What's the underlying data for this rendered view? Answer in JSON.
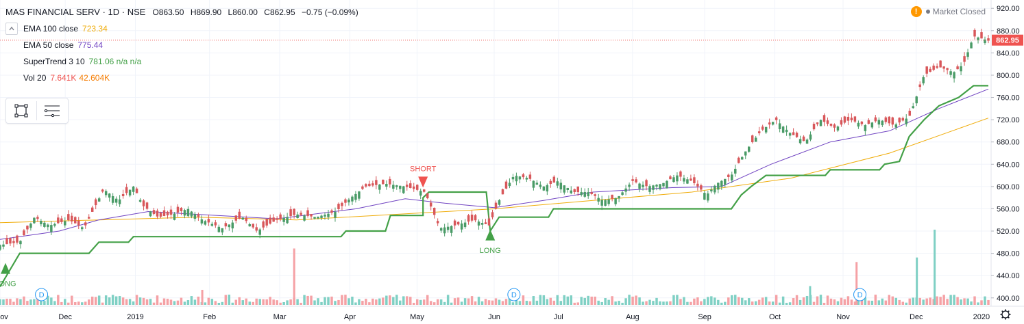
{
  "header": {
    "symbol": "MAS FINANCIAL SERV · 1D · NSE",
    "open": "O863.50",
    "high": "H869.90",
    "low": "L860.00",
    "close": "C862.95",
    "change": "−0.75 (−0.09%)",
    "collapse_icon": "chevron-up-icon"
  },
  "indicators": [
    {
      "name": "EMA 100 close",
      "value": "723.34",
      "color": "#f0ad0c"
    },
    {
      "name": "EMA 50 close",
      "value": "775.44",
      "color": "#6f42c1"
    },
    {
      "name": "SuperTrend 3 10",
      "value": "781.06 n/a n/a",
      "color": "#43a047"
    },
    {
      "name": "Vol 20",
      "value": "7.641K",
      "value2": "42.604K",
      "color": "#ef5350",
      "color2": "#f57c00"
    }
  ],
  "toolbox": {
    "tool1": "square-icon",
    "tool2": "list-icon"
  },
  "market": {
    "warning": "!",
    "status": "Market Closed"
  },
  "price_label": "862.95",
  "chart_data": {
    "type": "candlestick",
    "colors": {
      "up": "#4a9b67",
      "down": "#d8575a",
      "up_vol": "#7fd0c4",
      "down_vol": "#f5a1a5",
      "ema100": "#f0ad0c",
      "ema50": "#6f42c1",
      "supertrend": "#43a047"
    },
    "ylim": [
      385,
      935
    ],
    "y_ticks": [
      400,
      440,
      480,
      520,
      560,
      600,
      640,
      680,
      720,
      760,
      800,
      840,
      880,
      920
    ],
    "x_ticks": [
      {
        "label": "ov",
        "t": 0.0
      },
      {
        "label": "Dec",
        "t": 0.066
      },
      {
        "label": "2019",
        "t": 0.137
      },
      {
        "label": "Feb",
        "t": 0.212
      },
      {
        "label": "Mar",
        "t": 0.283
      },
      {
        "label": "Apr",
        "t": 0.354
      },
      {
        "label": "May",
        "t": 0.422
      },
      {
        "label": "Jun",
        "t": 0.5
      },
      {
        "label": "Jul",
        "t": 0.565
      },
      {
        "label": "Aug",
        "t": 0.64
      },
      {
        "label": "Sep",
        "t": 0.713
      },
      {
        "label": "Oct",
        "t": 0.784
      },
      {
        "label": "Nov",
        "t": 0.853
      },
      {
        "label": "Dec",
        "t": 0.927
      },
      {
        "label": "2020",
        "t": 0.993
      }
    ],
    "price_path": [
      [
        0.0,
        495
      ],
      [
        0.02,
        500
      ],
      [
        0.035,
        545
      ],
      [
        0.05,
        530
      ],
      [
        0.07,
        540
      ],
      [
        0.085,
        525
      ],
      [
        0.095,
        560
      ],
      [
        0.105,
        595
      ],
      [
        0.12,
        575
      ],
      [
        0.135,
        600
      ],
      [
        0.145,
        565
      ],
      [
        0.16,
        545
      ],
      [
        0.175,
        550
      ],
      [
        0.19,
        560
      ],
      [
        0.205,
        540
      ],
      [
        0.225,
        525
      ],
      [
        0.245,
        545
      ],
      [
        0.26,
        520
      ],
      [
        0.28,
        540
      ],
      [
        0.3,
        550
      ],
      [
        0.32,
        545
      ],
      [
        0.34,
        555
      ],
      [
        0.355,
        580
      ],
      [
        0.37,
        600
      ],
      [
        0.39,
        605
      ],
      [
        0.41,
        600
      ],
      [
        0.43,
        590
      ],
      [
        0.445,
        525
      ],
      [
        0.46,
        530
      ],
      [
        0.48,
        540
      ],
      [
        0.495,
        530
      ],
      [
        0.505,
        575
      ],
      [
        0.52,
        620
      ],
      [
        0.535,
        615
      ],
      [
        0.55,
        600
      ],
      [
        0.565,
        610
      ],
      [
        0.58,
        590
      ],
      [
        0.595,
        590
      ],
      [
        0.61,
        575
      ],
      [
        0.625,
        580
      ],
      [
        0.64,
        610
      ],
      [
        0.655,
        600
      ],
      [
        0.67,
        605
      ],
      [
        0.685,
        620
      ],
      [
        0.7,
        610
      ],
      [
        0.715,
        585
      ],
      [
        0.725,
        605
      ],
      [
        0.74,
        620
      ],
      [
        0.755,
        665
      ],
      [
        0.77,
        700
      ],
      [
        0.785,
        720
      ],
      [
        0.8,
        695
      ],
      [
        0.815,
        680
      ],
      [
        0.83,
        720
      ],
      [
        0.845,
        705
      ],
      [
        0.86,
        720
      ],
      [
        0.875,
        710
      ],
      [
        0.89,
        720
      ],
      [
        0.905,
        710
      ],
      [
        0.92,
        725
      ],
      [
        0.935,
        800
      ],
      [
        0.95,
        815
      ],
      [
        0.965,
        805
      ],
      [
        0.975,
        820
      ],
      [
        0.985,
        870
      ],
      [
        0.995,
        865
      ],
      [
        1.0,
        862
      ]
    ],
    "volume_markers": [
      {
        "t": 0.298,
        "value": 0.75,
        "dir": "down"
      },
      {
        "t": 0.867,
        "value": 0.57,
        "dir": "down"
      },
      {
        "t": 0.928,
        "value": 0.63,
        "dir": "up"
      },
      {
        "t": 0.946,
        "value": 1.0,
        "dir": "up"
      },
      {
        "t": 0.82,
        "value": 0.25,
        "dir": "up"
      },
      {
        "t": 0.205,
        "value": 0.2,
        "dir": "down"
      }
    ],
    "ema100": [
      [
        0.0,
        535
      ],
      [
        0.1,
        540
      ],
      [
        0.2,
        545
      ],
      [
        0.3,
        540
      ],
      [
        0.4,
        550
      ],
      [
        0.5,
        560
      ],
      [
        0.6,
        575
      ],
      [
        0.7,
        590
      ],
      [
        0.8,
        615
      ],
      [
        0.9,
        660
      ],
      [
        1.0,
        723
      ]
    ],
    "ema50": [
      [
        0.0,
        505
      ],
      [
        0.06,
        520
      ],
      [
        0.1,
        540
      ],
      [
        0.15,
        555
      ],
      [
        0.2,
        550
      ],
      [
        0.28,
        542
      ],
      [
        0.36,
        560
      ],
      [
        0.41,
        578
      ],
      [
        0.45,
        570
      ],
      [
        0.5,
        562
      ],
      [
        0.55,
        575
      ],
      [
        0.6,
        590
      ],
      [
        0.68,
        598
      ],
      [
        0.73,
        600
      ],
      [
        0.78,
        640
      ],
      [
        0.84,
        680
      ],
      [
        0.9,
        700
      ],
      [
        0.95,
        740
      ],
      [
        1.0,
        775
      ]
    ],
    "supertrend": [
      [
        0.0,
        420
      ],
      [
        0.02,
        480
      ],
      [
        0.09,
        480
      ],
      [
        0.1,
        500
      ],
      [
        0.13,
        500
      ],
      [
        0.135,
        510
      ],
      [
        0.345,
        510
      ],
      [
        0.35,
        520
      ],
      [
        0.39,
        520
      ],
      [
        0.395,
        548
      ],
      [
        0.428,
        548
      ],
      [
        0.428,
        580
      ],
      [
        0.434,
        590
      ],
      [
        0.492,
        590
      ],
      [
        0.496,
        520
      ],
      [
        0.505,
        545
      ],
      [
        0.555,
        545
      ],
      [
        0.56,
        560
      ],
      [
        0.74,
        560
      ],
      [
        0.75,
        585
      ],
      [
        0.76,
        600
      ],
      [
        0.775,
        620
      ],
      [
        0.835,
        620
      ],
      [
        0.84,
        630
      ],
      [
        0.89,
        630
      ],
      [
        0.895,
        640
      ],
      [
        0.91,
        645
      ],
      [
        0.92,
        690
      ],
      [
        0.935,
        720
      ],
      [
        0.95,
        745
      ],
      [
        0.97,
        760
      ],
      [
        0.985,
        781
      ],
      [
        1.0,
        781
      ]
    ],
    "signals": [
      {
        "label": "SHORT",
        "t": 0.428,
        "price": 603,
        "dir": "down",
        "color": "#ef5350"
      },
      {
        "label": "LONG",
        "t": 0.496,
        "price": 508,
        "dir": "up",
        "color": "#43a047"
      },
      {
        "label": "LONG",
        "t": 0.0,
        "price": 448,
        "dir": "up",
        "color": "#43a047"
      }
    ],
    "dividends": [
      {
        "label": "D",
        "t": 0.042
      },
      {
        "label": "D",
        "t": 0.52
      },
      {
        "label": "D",
        "t": 0.87
      }
    ]
  }
}
